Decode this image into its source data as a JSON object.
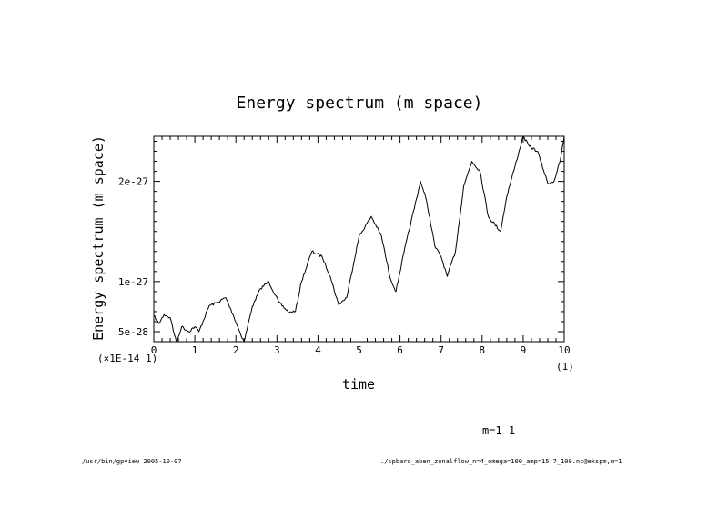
{
  "chart_data": {
    "type": "line",
    "title": "Energy spectrum (m space)",
    "xlabel": "time",
    "ylabel": "Energy spectrum (m space)",
    "x_scale_note": "(×1E-14 1)",
    "x_end_note": "(1)",
    "xlim": [
      0,
      10
    ],
    "ylim": [
      4e-28,
      2.45e-27
    ],
    "x_ticks": [
      0,
      1,
      2,
      3,
      4,
      5,
      6,
      7,
      8,
      9,
      10
    ],
    "x_tick_labels": [
      "0",
      "1",
      "2",
      "3",
      "4",
      "5",
      "6",
      "7",
      "8",
      "9",
      "10"
    ],
    "y_ticks": [
      5e-28,
      1e-27,
      2e-27
    ],
    "y_tick_labels": [
      "5e-28",
      "1e-27",
      "2e-27"
    ],
    "series": [
      {
        "name": "m=1 1",
        "x": [
          0.0,
          0.12,
          0.25,
          0.4,
          0.55,
          0.68,
          0.85,
          1.0,
          1.1,
          1.35,
          1.55,
          1.75,
          1.95,
          2.1,
          2.2,
          2.4,
          2.6,
          2.8,
          3.05,
          3.3,
          3.45,
          3.6,
          3.85,
          4.1,
          4.3,
          4.5,
          4.7,
          5.0,
          5.3,
          5.55,
          5.75,
          5.9,
          6.1,
          6.5,
          6.65,
          6.85,
          7.0,
          7.15,
          7.35,
          7.55,
          7.75,
          7.95,
          8.15,
          8.45,
          8.6,
          8.8,
          9.0,
          9.15,
          9.35,
          9.6,
          9.75,
          9.9,
          10.0
        ],
        "y": [
          6.6e-28,
          5.8e-28,
          6.7e-28,
          6.4e-28,
          3.9e-28,
          5.5e-28,
          5e-28,
          5.5e-28,
          5e-28,
          7.6e-28,
          7.9e-28,
          8.4e-28,
          6.5e-28,
          4.9e-28,
          4e-28,
          7.5e-28,
          9.3e-28,
          1e-27,
          7.9e-28,
          6.9e-28,
          7e-28,
          1e-27,
          1.3e-27,
          1.25e-27,
          1.05e-27,
          7.7e-28,
          8.4e-28,
          1.45e-27,
          1.65e-27,
          1.45e-27,
          1.05e-27,
          9e-28,
          1.3e-27,
          2e-27,
          1.8e-27,
          1.35e-27,
          1.25e-27,
          1.05e-27,
          1.3e-27,
          1.95e-27,
          2.2e-27,
          2.1e-27,
          1.65e-27,
          1.5e-27,
          1.85e-27,
          2.15e-27,
          2.45e-27,
          2.35e-27,
          2.3e-27,
          1.98e-27,
          2e-27,
          2.2e-27,
          2.45e-27
        ]
      }
    ],
    "legend": "m=1 1"
  },
  "footer": {
    "left": "/usr/bin/gpview  2005-10-07",
    "right": "./spbaro_aben_zonalflow_n=4_omega=100_amp=15.7_100.nc@ekspm,m=1"
  }
}
